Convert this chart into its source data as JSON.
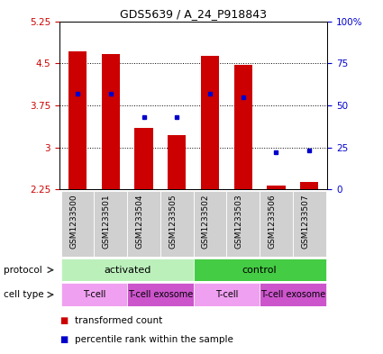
{
  "title": "GDS5639 / A_24_P918843",
  "samples": [
    "GSM1233500",
    "GSM1233501",
    "GSM1233504",
    "GSM1233505",
    "GSM1233502",
    "GSM1233503",
    "GSM1233506",
    "GSM1233507"
  ],
  "transformed_counts": [
    4.72,
    4.67,
    3.35,
    3.22,
    4.63,
    4.47,
    2.32,
    2.38
  ],
  "percentile_ranks": [
    57,
    57,
    43,
    43,
    57,
    55,
    22,
    23
  ],
  "ylim_left": [
    2.25,
    5.25
  ],
  "ylim_right": [
    0,
    100
  ],
  "yticks_left": [
    2.25,
    3.0,
    3.75,
    4.5,
    5.25
  ],
  "yticks_right": [
    0,
    25,
    50,
    75,
    100
  ],
  "ytick_labels_left": [
    "2.25",
    "3",
    "3.75",
    "4.5",
    "5.25"
  ],
  "ytick_labels_right": [
    "0",
    "25",
    "50",
    "75",
    "100%"
  ],
  "bar_color": "#cc0000",
  "dot_color": "#0000cc",
  "bar_bottom": 2.25,
  "protocol_groups": [
    {
      "label": "activated",
      "start": 0,
      "end": 4,
      "color": "#bbf0bb"
    },
    {
      "label": "control",
      "start": 4,
      "end": 8,
      "color": "#44cc44"
    }
  ],
  "cell_type_groups": [
    {
      "label": "T-cell",
      "start": 0,
      "end": 2,
      "color": "#f0a0f0"
    },
    {
      "label": "T-cell exosome",
      "start": 2,
      "end": 4,
      "color": "#cc55cc"
    },
    {
      "label": "T-cell",
      "start": 4,
      "end": 6,
      "color": "#f0a0f0"
    },
    {
      "label": "T-cell exosome",
      "start": 6,
      "end": 8,
      "color": "#cc55cc"
    }
  ],
  "axis_color_left": "#cc0000",
  "axis_color_right": "#0000cc",
  "legend_items": [
    {
      "label": "transformed count",
      "color": "#cc0000"
    },
    {
      "label": "percentile rank within the sample",
      "color": "#0000cc"
    }
  ],
  "bg_color": "#ffffff",
  "sample_bg_color": "#d0d0d0",
  "protocol_label": "protocol",
  "celltype_label": "cell type"
}
